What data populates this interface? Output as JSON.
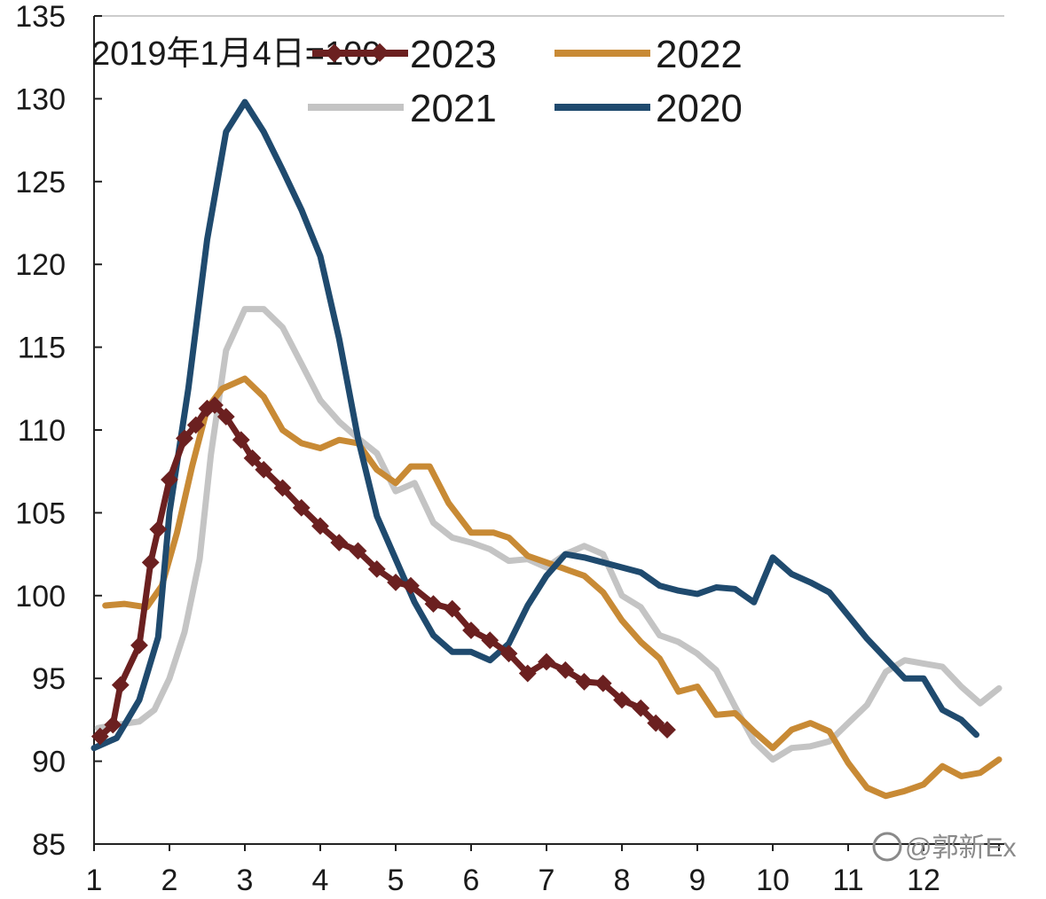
{
  "chart_data": {
    "type": "line",
    "annotation": "2019年1月4日=100",
    "watermark": "@郭新Ex",
    "y_ticks": [
      "85",
      "90",
      "95",
      "100",
      "105",
      "110",
      "115",
      "120",
      "125",
      "130",
      "135"
    ],
    "x_ticks": [
      "1",
      "2",
      "3",
      "4",
      "5",
      "6",
      "7",
      "8",
      "9",
      "10",
      "11",
      "12"
    ],
    "ylim": [
      85,
      135
    ],
    "xlim": [
      1,
      13
    ],
    "grid": false,
    "legend_position": "top",
    "series": [
      {
        "name": "2023",
        "color": "#6b2020",
        "marker": "diamond",
        "points": [
          [
            1.08,
            91.5
          ],
          [
            1.25,
            92.2
          ],
          [
            1.35,
            94.6
          ],
          [
            1.6,
            97
          ],
          [
            1.75,
            102
          ],
          [
            1.85,
            104
          ],
          [
            2.0,
            107
          ],
          [
            2.2,
            109.5
          ],
          [
            2.35,
            110.3
          ],
          [
            2.5,
            111.3
          ],
          [
            2.6,
            111.5
          ],
          [
            2.75,
            110.8
          ],
          [
            2.95,
            109.4
          ],
          [
            3.1,
            108.3
          ],
          [
            3.25,
            107.6
          ],
          [
            3.5,
            106.5
          ],
          [
            3.75,
            105.3
          ],
          [
            4.0,
            104.2
          ],
          [
            4.25,
            103.2
          ],
          [
            4.5,
            102.7
          ],
          [
            4.75,
            101.6
          ],
          [
            5.0,
            100.8
          ],
          [
            5.2,
            100.6
          ],
          [
            5.5,
            99.5
          ],
          [
            5.75,
            99.2
          ],
          [
            6.0,
            97.9
          ],
          [
            6.25,
            97.3
          ],
          [
            6.5,
            96.5
          ],
          [
            6.75,
            95.3
          ],
          [
            7.0,
            96.0
          ],
          [
            7.25,
            95.5
          ],
          [
            7.5,
            94.8
          ],
          [
            7.75,
            94.7
          ],
          [
            8.0,
            93.7
          ],
          [
            8.25,
            93.2
          ],
          [
            8.45,
            92.3
          ],
          [
            8.6,
            91.9
          ]
        ]
      },
      {
        "name": "2022",
        "color": "#c88a35",
        "marker": "none",
        "points": [
          [
            1.15,
            99.4
          ],
          [
            1.4,
            99.5
          ],
          [
            1.7,
            99.3
          ],
          [
            1.9,
            100.6
          ],
          [
            2.1,
            103.8
          ],
          [
            2.3,
            107.8
          ],
          [
            2.5,
            111.3
          ],
          [
            2.7,
            112.5
          ],
          [
            3.0,
            113.1
          ],
          [
            3.25,
            112.0
          ],
          [
            3.5,
            110.0
          ],
          [
            3.75,
            109.2
          ],
          [
            4.0,
            108.9
          ],
          [
            4.25,
            109.4
          ],
          [
            4.5,
            109.2
          ],
          [
            4.75,
            107.6
          ],
          [
            5.0,
            106.8
          ],
          [
            5.2,
            107.8
          ],
          [
            5.45,
            107.8
          ],
          [
            5.7,
            105.6
          ],
          [
            6.0,
            103.8
          ],
          [
            6.3,
            103.8
          ],
          [
            6.5,
            103.5
          ],
          [
            6.75,
            102.4
          ],
          [
            7.0,
            102.0
          ],
          [
            7.25,
            101.6
          ],
          [
            7.5,
            101.2
          ],
          [
            7.75,
            100.2
          ],
          [
            8.0,
            98.5
          ],
          [
            8.25,
            97.2
          ],
          [
            8.5,
            96.2
          ],
          [
            8.75,
            94.2
          ],
          [
            9.0,
            94.5
          ],
          [
            9.25,
            92.8
          ],
          [
            9.5,
            92.9
          ],
          [
            9.75,
            91.8
          ],
          [
            10.0,
            90.8
          ],
          [
            10.25,
            91.9
          ],
          [
            10.5,
            92.3
          ],
          [
            10.75,
            91.8
          ],
          [
            11.0,
            89.9
          ],
          [
            11.25,
            88.4
          ],
          [
            11.5,
            87.9
          ],
          [
            11.75,
            88.2
          ],
          [
            12.0,
            88.6
          ],
          [
            12.25,
            89.7
          ],
          [
            12.5,
            89.1
          ],
          [
            12.75,
            89.3
          ],
          [
            13.0,
            90.1
          ]
        ]
      },
      {
        "name": "2021",
        "color": "#c4c4c4",
        "marker": "none",
        "points": [
          [
            1.05,
            92.0
          ],
          [
            1.3,
            92.2
          ],
          [
            1.6,
            92.4
          ],
          [
            1.8,
            93.1
          ],
          [
            2.0,
            95.0
          ],
          [
            2.2,
            97.8
          ],
          [
            2.4,
            102.2
          ],
          [
            2.55,
            108.5
          ],
          [
            2.75,
            114.8
          ],
          [
            3.0,
            117.3
          ],
          [
            3.25,
            117.3
          ],
          [
            3.5,
            116.2
          ],
          [
            3.75,
            114.0
          ],
          [
            4.0,
            111.8
          ],
          [
            4.25,
            110.5
          ],
          [
            4.5,
            109.5
          ],
          [
            4.75,
            108.6
          ],
          [
            5.0,
            106.3
          ],
          [
            5.25,
            106.8
          ],
          [
            5.5,
            104.4
          ],
          [
            5.75,
            103.5
          ],
          [
            6.0,
            103.2
          ],
          [
            6.25,
            102.8
          ],
          [
            6.5,
            102.1
          ],
          [
            6.75,
            102.2
          ],
          [
            7.0,
            101.7
          ],
          [
            7.25,
            102.5
          ],
          [
            7.5,
            103.0
          ],
          [
            7.75,
            102.5
          ],
          [
            8.0,
            100.0
          ],
          [
            8.25,
            99.3
          ],
          [
            8.5,
            97.6
          ],
          [
            8.75,
            97.2
          ],
          [
            9.0,
            96.5
          ],
          [
            9.25,
            95.5
          ],
          [
            9.5,
            93.3
          ],
          [
            9.75,
            91.2
          ],
          [
            10.0,
            90.1
          ],
          [
            10.25,
            90.8
          ],
          [
            10.5,
            90.9
          ],
          [
            10.75,
            91.2
          ],
          [
            11.0,
            92.3
          ],
          [
            11.25,
            93.4
          ],
          [
            11.5,
            95.4
          ],
          [
            11.75,
            96.1
          ],
          [
            12.0,
            95.9
          ],
          [
            12.25,
            95.7
          ],
          [
            12.5,
            94.5
          ],
          [
            12.75,
            93.5
          ],
          [
            13.0,
            94.4
          ]
        ]
      },
      {
        "name": "2020",
        "color": "#1f4a6e",
        "marker": "none",
        "points": [
          [
            1.0,
            90.8
          ],
          [
            1.3,
            91.4
          ],
          [
            1.6,
            93.7
          ],
          [
            1.85,
            97.5
          ],
          [
            2.0,
            105.0
          ],
          [
            2.25,
            112.5
          ],
          [
            2.5,
            121.5
          ],
          [
            2.75,
            128.0
          ],
          [
            3.0,
            129.8
          ],
          [
            3.25,
            128.0
          ],
          [
            3.5,
            125.7
          ],
          [
            3.75,
            123.3
          ],
          [
            4.0,
            120.5
          ],
          [
            4.25,
            115.5
          ],
          [
            4.5,
            109.5
          ],
          [
            4.75,
            104.8
          ],
          [
            5.0,
            102.2
          ],
          [
            5.25,
            99.6
          ],
          [
            5.5,
            97.6
          ],
          [
            5.75,
            96.6
          ],
          [
            6.0,
            96.6
          ],
          [
            6.25,
            96.1
          ],
          [
            6.5,
            97.1
          ],
          [
            6.75,
            99.4
          ],
          [
            7.0,
            101.2
          ],
          [
            7.25,
            102.5
          ],
          [
            7.5,
            102.3
          ],
          [
            7.75,
            102.0
          ],
          [
            8.0,
            101.7
          ],
          [
            8.25,
            101.4
          ],
          [
            8.5,
            100.6
          ],
          [
            8.75,
            100.3
          ],
          [
            9.0,
            100.1
          ],
          [
            9.25,
            100.5
          ],
          [
            9.5,
            100.4
          ],
          [
            9.75,
            99.6
          ],
          [
            10.0,
            102.3
          ],
          [
            10.25,
            101.3
          ],
          [
            10.5,
            100.8
          ],
          [
            10.75,
            100.2
          ],
          [
            11.0,
            98.8
          ],
          [
            11.25,
            97.4
          ],
          [
            11.5,
            96.2
          ],
          [
            11.75,
            95.0
          ],
          [
            12.0,
            95.0
          ],
          [
            12.25,
            93.1
          ],
          [
            12.5,
            92.5
          ],
          [
            12.7,
            91.6
          ]
        ]
      }
    ]
  }
}
